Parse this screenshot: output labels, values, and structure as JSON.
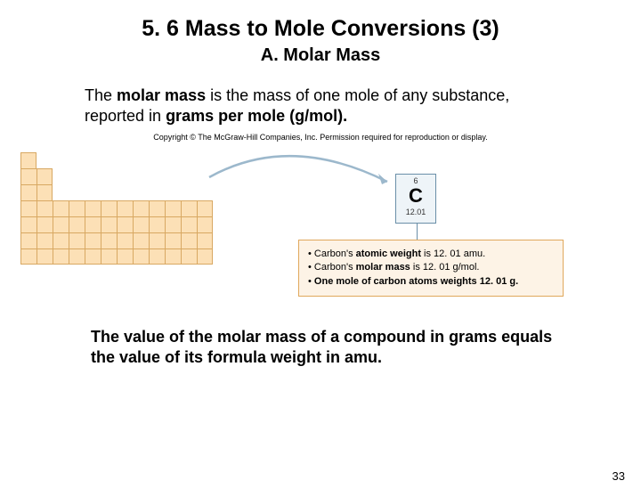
{
  "title": "5. 6 Mass to Mole Conversions (3)",
  "subtitle": "A. Molar Mass",
  "intro_parts": {
    "a": "The ",
    "b": "molar mass",
    "c": " is the mass of one mole of any substance, reported in ",
    "d": "grams per mole (g/mol).",
    "e": ""
  },
  "copyright": "Copyright © The McGraw-Hill Companies, Inc. Permission required for reproduction or display.",
  "element": {
    "number": "6",
    "symbol": "C",
    "weight": "12.01"
  },
  "callout": {
    "l1a": "Carbon's ",
    "l1b": "atomic weight",
    "l1c": " is 12. 01 amu.",
    "l2a": "Carbon's ",
    "l2b": "molar mass",
    "l2c": " is 12. 01 g/mol.",
    "l3a": "",
    "l3b": "One mole of carbon atoms weights 12. 01 g.",
    "l3c": ""
  },
  "conclusion": "The value of the molar mass of a compound in grams equals the value of its formula weight in amu.",
  "page_number": "33",
  "colors": {
    "cell_fill": "#fce0b6",
    "cell_border": "#d8a862",
    "element_fill": "#eef4f8",
    "element_border": "#6a8fa8",
    "callout_fill": "#fdf3e6",
    "callout_border": "#e0a85c",
    "arrow": "#9cb8cc"
  },
  "periodic_table": {
    "cell_size": 18,
    "rows": 7,
    "layout": [
      {
        "row": 0,
        "cols": [
          0
        ]
      },
      {
        "row": 1,
        "cols": [
          0,
          1
        ]
      },
      {
        "row": 2,
        "cols": [
          0,
          1
        ]
      },
      {
        "row": 3,
        "cols": [
          0,
          1,
          2,
          3,
          4,
          5,
          6,
          7,
          8,
          9,
          10,
          11
        ]
      },
      {
        "row": 4,
        "cols": [
          0,
          1,
          2,
          3,
          4,
          5,
          6,
          7,
          8,
          9,
          10,
          11
        ]
      },
      {
        "row": 5,
        "cols": [
          0,
          1,
          2,
          3,
          4,
          5,
          6,
          7,
          8,
          9,
          10,
          11
        ]
      },
      {
        "row": 6,
        "cols": [
          0,
          1,
          2,
          3,
          4,
          5,
          6,
          7,
          8,
          9,
          10,
          11
        ]
      }
    ]
  }
}
